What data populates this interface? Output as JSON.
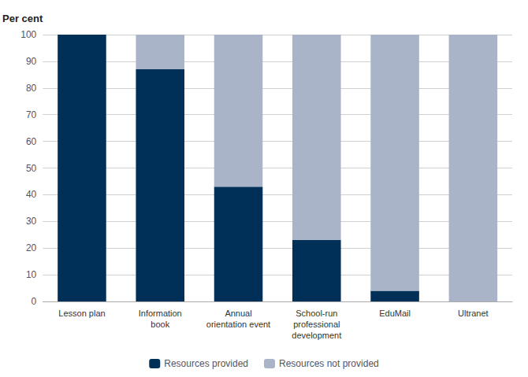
{
  "chart_data": {
    "type": "bar",
    "stacked": true,
    "ylabel": "Per cent",
    "categories": [
      "Lesson plan",
      "Information\nbook",
      "Annual\norientation event",
      "School-run\nprofessional\ndevelopment",
      "EduMail",
      "Ultranet"
    ],
    "series": [
      {
        "name": "Resources provided",
        "color": "#003057",
        "values": [
          100,
          87,
          43,
          23,
          4,
          0
        ]
      },
      {
        "name": "Resources not provided",
        "color": "#aab4c8",
        "values": [
          0,
          13,
          57,
          77,
          96,
          100
        ]
      }
    ],
    "ylim": [
      0,
      100
    ],
    "yticks": [
      0,
      10,
      20,
      30,
      40,
      50,
      60,
      70,
      80,
      90,
      100
    ],
    "grid": true,
    "legend": "bottom"
  }
}
